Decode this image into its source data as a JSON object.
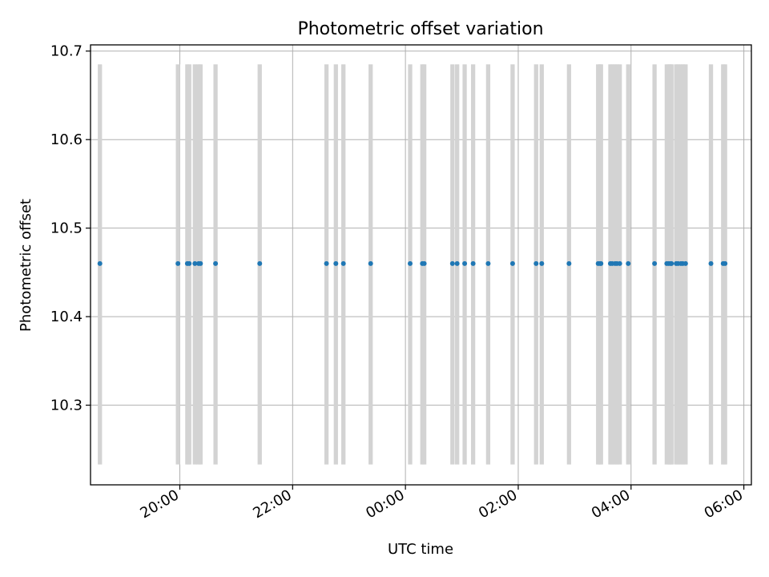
{
  "chart_data": {
    "type": "scatter",
    "title": "Photometric offset variation",
    "xlabel": "UTC time",
    "ylabel": "Photometric offset",
    "grid": true,
    "x_range": [
      "18:25",
      "06:08"
    ],
    "ylim": [
      10.21,
      10.707
    ],
    "x_ticks": [
      "20:00",
      "22:00",
      "00:00",
      "02:00",
      "04:00",
      "06:00"
    ],
    "y_ticks": [
      "10.3",
      "10.4",
      "10.5",
      "10.6",
      "10.7"
    ],
    "point_color": "#1f77b4",
    "band_color": "#d3d3d3",
    "band_range": [
      10.233,
      10.685
    ],
    "band_width_minutes": 4.5,
    "band_times": [
      "18:35",
      "19:58",
      "20:08",
      "20:10",
      "20:16",
      "20:20",
      "20:22",
      "20:38",
      "21:25",
      "22:36",
      "22:46",
      "22:54",
      "23:23",
      "00:05",
      "00:18",
      "00:20",
      "00:50",
      "00:55",
      "01:03",
      "01:12",
      "01:28",
      "01:54",
      "02:19",
      "02:25",
      "02:54",
      "03:25",
      "03:27",
      "03:28",
      "03:38",
      "03:40",
      "03:43",
      "03:45",
      "03:48",
      "03:57",
      "04:25",
      "04:38",
      "04:40",
      "04:42",
      "04:43",
      "04:48",
      "04:50",
      "04:53",
      "04:55",
      "04:58",
      "05:25",
      "05:38",
      "05:40"
    ],
    "points": [
      {
        "x": "18:35",
        "y": 10.46
      },
      {
        "x": "19:58",
        "y": 10.46
      },
      {
        "x": "20:08",
        "y": 10.46
      },
      {
        "x": "20:10",
        "y": 10.46
      },
      {
        "x": "20:16",
        "y": 10.46
      },
      {
        "x": "20:20",
        "y": 10.46
      },
      {
        "x": "20:22",
        "y": 10.46
      },
      {
        "x": "20:38",
        "y": 10.46
      },
      {
        "x": "21:25",
        "y": 10.46
      },
      {
        "x": "22:36",
        "y": 10.46
      },
      {
        "x": "22:46",
        "y": 10.46
      },
      {
        "x": "22:54",
        "y": 10.46
      },
      {
        "x": "23:23",
        "y": 10.46
      },
      {
        "x": "00:05",
        "y": 10.46
      },
      {
        "x": "00:18",
        "y": 10.46
      },
      {
        "x": "00:20",
        "y": 10.46
      },
      {
        "x": "00:50",
        "y": 10.46
      },
      {
        "x": "00:55",
        "y": 10.46
      },
      {
        "x": "01:03",
        "y": 10.46
      },
      {
        "x": "01:12",
        "y": 10.46
      },
      {
        "x": "01:28",
        "y": 10.46
      },
      {
        "x": "01:54",
        "y": 10.46
      },
      {
        "x": "02:19",
        "y": 10.46
      },
      {
        "x": "02:25",
        "y": 10.46
      },
      {
        "x": "02:54",
        "y": 10.46
      },
      {
        "x": "03:25",
        "y": 10.46
      },
      {
        "x": "03:27",
        "y": 10.46
      },
      {
        "x": "03:28",
        "y": 10.46
      },
      {
        "x": "03:38",
        "y": 10.46
      },
      {
        "x": "03:40",
        "y": 10.46
      },
      {
        "x": "03:43",
        "y": 10.46
      },
      {
        "x": "03:45",
        "y": 10.46
      },
      {
        "x": "03:48",
        "y": 10.46
      },
      {
        "x": "03:57",
        "y": 10.46
      },
      {
        "x": "04:25",
        "y": 10.46
      },
      {
        "x": "04:38",
        "y": 10.46
      },
      {
        "x": "04:40",
        "y": 10.46
      },
      {
        "x": "04:42",
        "y": 10.46
      },
      {
        "x": "04:43",
        "y": 10.46
      },
      {
        "x": "04:48",
        "y": 10.46
      },
      {
        "x": "04:50",
        "y": 10.46
      },
      {
        "x": "04:53",
        "y": 10.46
      },
      {
        "x": "04:55",
        "y": 10.46
      },
      {
        "x": "04:58",
        "y": 10.46
      },
      {
        "x": "05:25",
        "y": 10.46
      },
      {
        "x": "05:38",
        "y": 10.46
      },
      {
        "x": "05:40",
        "y": 10.46
      }
    ]
  }
}
